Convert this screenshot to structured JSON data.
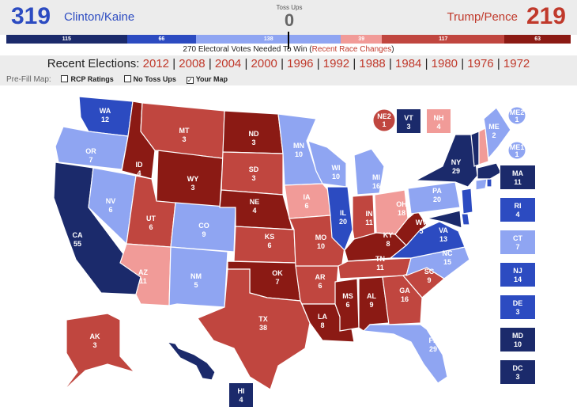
{
  "header": {
    "dem_total": "319",
    "dem_name": "Clinton/Kaine",
    "rep_total": "219",
    "rep_name": "Trump/Pence",
    "toss_label": "Toss Ups",
    "toss_value": "0"
  },
  "bar": [
    {
      "value": "115",
      "color": "#1b2a6b",
      "share": 115
    },
    {
      "value": "66",
      "color": "#2c4bc1",
      "share": 66
    },
    {
      "value": "138",
      "color": "#8fa5f2",
      "share": 138
    },
    {
      "value": "39",
      "color": "#f19b98",
      "share": 39
    },
    {
      "value": "117",
      "color": "#c0463f",
      "share": 117
    },
    {
      "value": "63",
      "color": "#8b1a14",
      "share": 63
    }
  ],
  "needed": {
    "text": "270 Electoral Votes Needed To Win (",
    "link": "Recent Race Changes",
    "close": ")"
  },
  "recent": {
    "label": "Recent Elections:",
    "years": [
      "2012",
      "2008",
      "2004",
      "2000",
      "1996",
      "1992",
      "1988",
      "1984",
      "1980",
      "1976",
      "1972"
    ]
  },
  "prefill": {
    "label": "Pre-Fill Map:",
    "options": [
      {
        "label": "RCP Ratings",
        "checked": false
      },
      {
        "label": "No Toss Ups",
        "checked": false
      },
      {
        "label": "Your Map",
        "checked": true
      }
    ]
  },
  "colors": {
    "solid_dem": "#1b2a6b",
    "likely_dem": "#2c4bc1",
    "lean_dem": "#8fa5f2",
    "lean_rep": "#f19b98",
    "likely_rep": "#c0463f",
    "solid_rep": "#8b1a14"
  },
  "states": {
    "WA": "12",
    "OR": "7",
    "CA": "55",
    "NV": "6",
    "ID": "4",
    "MT": "3",
    "WY": "3",
    "UT": "6",
    "AZ": "11",
    "CO": "9",
    "NM": "5",
    "ND": "3",
    "SD": "3",
    "NE": "4",
    "KS": "6",
    "OK": "7",
    "TX": "38",
    "MN": "10",
    "IA": "6",
    "MO": "10",
    "AR": "6",
    "LA": "8",
    "WI": "10",
    "IL": "20",
    "MI": "16",
    "IN": "11",
    "OH": "18",
    "KY": "8",
    "TN": "11",
    "MS": "6",
    "AL": "9",
    "GA": "16",
    "FL": "29",
    "SC": "9",
    "NC": "15",
    "VA": "13",
    "WV": "5",
    "PA": "20",
    "NY": "29",
    "ME": "2",
    "VT": "3",
    "NH": "4",
    "NE2": "1",
    "ME2": "1",
    "ME1": "1",
    "AK": "3",
    "HI": "4"
  },
  "side_states": [
    {
      "abbr": "MA",
      "ev": "11",
      "color": "#1b2a6b"
    },
    {
      "abbr": "RI",
      "ev": "4",
      "color": "#2c4bc1"
    },
    {
      "abbr": "CT",
      "ev": "7",
      "color": "#8fa5f2"
    },
    {
      "abbr": "NJ",
      "ev": "14",
      "color": "#2c4bc1"
    },
    {
      "abbr": "DE",
      "ev": "3",
      "color": "#2c4bc1"
    },
    {
      "abbr": "MD",
      "ev": "10",
      "color": "#1b2a6b"
    },
    {
      "abbr": "DC",
      "ev": "3",
      "color": "#1b2a6b"
    }
  ]
}
